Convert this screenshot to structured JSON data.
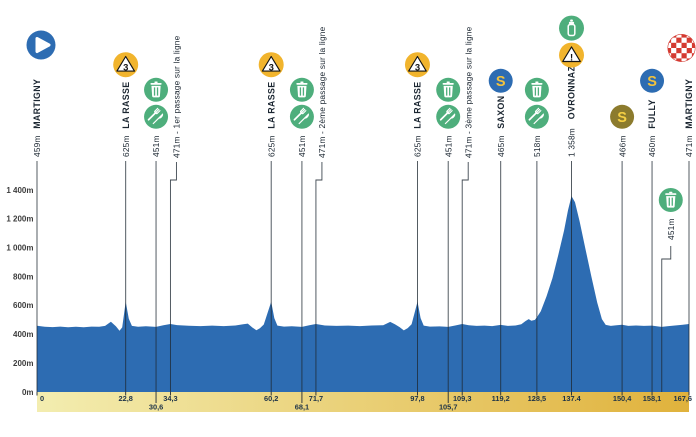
{
  "colors": {
    "profile_blue": "#2d6cb2",
    "marker_line": "#1f2933",
    "text_dark": "#1b2631",
    "axis_label": "#3c3c3c",
    "band_label": "#1c3247",
    "band_left": "#f3edb0",
    "band_right": "#e0b23c",
    "green": "#4eae7c",
    "amber": "#f1b42d",
    "olive": "#8c7b2d",
    "red": "#d43a31",
    "sprint_s_on_blue": "#f2c23d",
    "sprint_s_on_olive": "#f6d044",
    "glyph_dark": "#141414"
  },
  "chart_data": {
    "type": "area",
    "x_unit": "km",
    "y_unit": "m",
    "xlim": [
      0,
      167.6
    ],
    "ylim": [
      0,
      1400
    ],
    "grid": false,
    "y_ticks": [
      {
        "m": 1400,
        "label": "1 400m"
      },
      {
        "m": 1200,
        "label": "1 200m"
      },
      {
        "m": 1000,
        "label": "1 000m"
      },
      {
        "m": 800,
        "label": "800m"
      },
      {
        "m": 600,
        "label": "600m"
      },
      {
        "m": 400,
        "label": "400m"
      },
      {
        "m": 200,
        "label": "200m"
      },
      {
        "m": 0,
        "label": "0m"
      }
    ],
    "profile_points": [
      [
        0,
        459
      ],
      [
        2,
        452
      ],
      [
        4,
        450
      ],
      [
        6,
        453
      ],
      [
        8,
        449
      ],
      [
        10,
        452
      ],
      [
        12,
        449
      ],
      [
        14,
        453
      ],
      [
        16,
        452
      ],
      [
        17.5,
        458
      ],
      [
        19,
        487
      ],
      [
        20.3,
        455
      ],
      [
        21.2,
        424
      ],
      [
        21.9,
        448
      ],
      [
        22.8,
        625
      ],
      [
        23.6,
        508
      ],
      [
        24.4,
        458
      ],
      [
        26,
        452
      ],
      [
        28,
        456
      ],
      [
        30.6,
        451
      ],
      [
        32.5,
        462
      ],
      [
        34.3,
        471
      ],
      [
        36,
        464
      ],
      [
        39,
        459
      ],
      [
        42,
        457
      ],
      [
        45,
        460
      ],
      [
        48,
        457
      ],
      [
        51,
        461
      ],
      [
        53,
        470
      ],
      [
        54.2,
        474
      ],
      [
        55.4,
        446
      ],
      [
        56.4,
        428
      ],
      [
        57.3,
        442
      ],
      [
        58.3,
        468
      ],
      [
        60.2,
        625
      ],
      [
        61,
        512
      ],
      [
        61.8,
        460
      ],
      [
        63.5,
        453
      ],
      [
        65.5,
        456
      ],
      [
        68.1,
        451
      ],
      [
        70,
        463
      ],
      [
        71.7,
        471
      ],
      [
        74,
        461
      ],
      [
        77,
        458
      ],
      [
        80,
        460
      ],
      [
        83,
        457
      ],
      [
        86,
        461
      ],
      [
        89,
        463
      ],
      [
        90.8,
        486
      ],
      [
        92,
        470
      ],
      [
        93.2,
        450
      ],
      [
        94.3,
        427
      ],
      [
        95.3,
        443
      ],
      [
        96.3,
        470
      ],
      [
        97.8,
        625
      ],
      [
        98.6,
        512
      ],
      [
        99.4,
        460
      ],
      [
        101,
        453
      ],
      [
        103.5,
        455
      ],
      [
        105.7,
        451
      ],
      [
        107.5,
        461
      ],
      [
        109.3,
        471
      ],
      [
        111,
        462
      ],
      [
        113,
        458
      ],
      [
        115,
        460
      ],
      [
        117,
        457
      ],
      [
        119.2,
        465
      ],
      [
        121,
        458
      ],
      [
        123,
        461
      ],
      [
        124.5,
        470
      ],
      [
        125.6,
        492
      ],
      [
        126.4,
        505
      ],
      [
        127.1,
        494
      ],
      [
        128,
        500
      ],
      [
        128.5,
        518
      ],
      [
        129.5,
        560
      ],
      [
        131,
        665
      ],
      [
        132.5,
        790
      ],
      [
        134,
        950
      ],
      [
        135.5,
        1120
      ],
      [
        136.5,
        1260
      ],
      [
        137.4,
        1358
      ],
      [
        138.3,
        1315
      ],
      [
        139.5,
        1180
      ],
      [
        141,
        990
      ],
      [
        142.5,
        800
      ],
      [
        144,
        620
      ],
      [
        145.2,
        505
      ],
      [
        146.2,
        465
      ],
      [
        147.5,
        458
      ],
      [
        149,
        462
      ],
      [
        150.4,
        466
      ],
      [
        152,
        458
      ],
      [
        154,
        461
      ],
      [
        156,
        458
      ],
      [
        158.1,
        460
      ],
      [
        160,
        453
      ],
      [
        160.6,
        451
      ],
      [
        162,
        456
      ],
      [
        164,
        461
      ],
      [
        166,
        466
      ],
      [
        167.6,
        471
      ]
    ],
    "markers": [
      {
        "km": 0,
        "band_label": "0",
        "band_row": 1,
        "name": "MARTIGNY",
        "elevation": "459m",
        "icons": [
          "start"
        ]
      },
      {
        "km": 22.8,
        "band_label": "22,8",
        "band_row": 1,
        "name": "LA RASSE",
        "elevation": "625m",
        "icons": [
          "category-3-climb"
        ]
      },
      {
        "km": 30.6,
        "band_label": "30,6",
        "band_row": 2,
        "elevation": "451m",
        "icons": [
          "waste-bin",
          "feed-station"
        ]
      },
      {
        "km": 34.3,
        "band_label": "34,3",
        "band_row": 1,
        "note": "471m - 1er passage sur la ligne",
        "jog": true
      },
      {
        "km": 60.2,
        "band_label": "60,2",
        "band_row": 1,
        "name": "LA RASSE",
        "elevation": "625m",
        "icons": [
          "category-3-climb"
        ]
      },
      {
        "km": 68.1,
        "band_label": "68,1",
        "band_row": 2,
        "elevation": "451m",
        "icons": [
          "waste-bin",
          "feed-station"
        ]
      },
      {
        "km": 71.7,
        "band_label": "71,7",
        "band_row": 1,
        "note": "471m - 2ème passage sur la ligne",
        "jog": true
      },
      {
        "km": 97.8,
        "band_label": "97,8",
        "band_row": 1,
        "name": "LA RASSE",
        "elevation": "625m",
        "icons": [
          "category-3-climb"
        ]
      },
      {
        "km": 105.7,
        "band_label": "105,7",
        "band_row": 2,
        "elevation": "451m",
        "icons": [
          "waste-bin",
          "feed-station"
        ]
      },
      {
        "km": 109.3,
        "band_label": "109,3",
        "band_row": 1,
        "note": "471m - 3ème passage sur la ligne",
        "jog": true
      },
      {
        "km": 119.2,
        "band_label": "119,2",
        "band_row": 1,
        "name": "SAXON",
        "elevation": "465m",
        "icons": [
          "sprint-blue"
        ]
      },
      {
        "km": 128.5,
        "band_label": "128,5",
        "band_row": 1,
        "elevation": "518m",
        "icons": [
          "waste-bin",
          "feed-station"
        ]
      },
      {
        "km": 137.4,
        "band_label": "137.4",
        "band_row": 1,
        "name": "OVRONNAZ",
        "elevation": "1 358m",
        "icons": [
          "water-bottle",
          "danger"
        ]
      },
      {
        "km": 150.4,
        "band_label": "150,4",
        "band_row": 1,
        "elevation": "466m",
        "icons": [
          "sprint-olive"
        ]
      },
      {
        "km": 158.1,
        "band_label": "158,1",
        "band_row": 1,
        "name": "FULLY",
        "elevation": "460m",
        "icons": [
          "sprint-blue"
        ]
      },
      {
        "km": 167.6,
        "band_label": "167,6",
        "band_row": 1,
        "name": "MARTIGNY",
        "elevation": "471m",
        "icons": [
          "finish"
        ]
      },
      {
        "km": 160.6,
        "elevation": "451m",
        "icons": [
          "waste-bin"
        ],
        "in_chart": true,
        "jog": true
      }
    ]
  }
}
